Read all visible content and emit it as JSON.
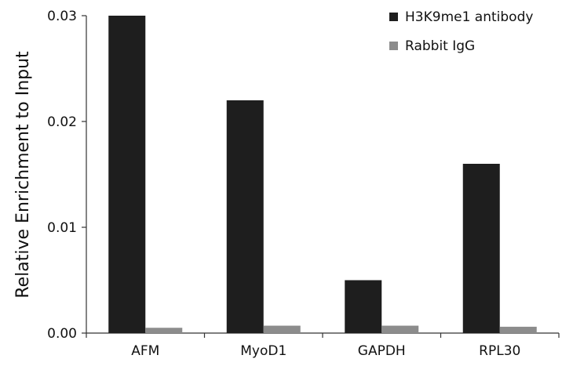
{
  "chart_data": {
    "type": "bar",
    "title": "",
    "xlabel": "",
    "ylabel": "Relative Enrichment to Input",
    "ylim": [
      0,
      0.03
    ],
    "yticks": [
      "0.00",
      "0.01",
      "0.02",
      "0.03"
    ],
    "categories": [
      "AFM",
      "MyoD1",
      "GAPDH",
      "RPL30"
    ],
    "series": [
      {
        "name": "H3K9me1 antibody",
        "color": "#1e1e1e",
        "values": [
          0.03,
          0.022,
          0.005,
          0.016
        ]
      },
      {
        "name": "Rabbit IgG",
        "color": "#8c8c8c",
        "values": [
          0.0005,
          0.0007,
          0.0007,
          0.0006
        ]
      }
    ],
    "grid": false,
    "legend": "top-right"
  }
}
